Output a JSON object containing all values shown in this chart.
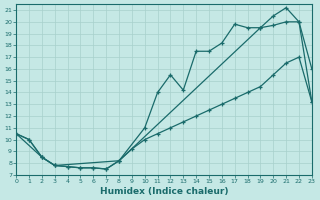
{
  "xlabel": "Humidex (Indice chaleur)",
  "background_color": "#c5e8e5",
  "grid_color": "#a8d0cc",
  "line_color": "#1a6b6b",
  "xlim": [
    0,
    23
  ],
  "ylim": [
    7,
    21.5
  ],
  "yticks": [
    7,
    8,
    9,
    10,
    11,
    12,
    13,
    14,
    15,
    16,
    17,
    18,
    19,
    20,
    21
  ],
  "xticks": [
    0,
    1,
    2,
    3,
    4,
    5,
    6,
    7,
    8,
    9,
    10,
    11,
    12,
    13,
    14,
    15,
    16,
    17,
    18,
    19,
    20,
    21,
    22,
    23
  ],
  "line1_x": [
    0,
    1,
    2,
    3,
    4,
    5,
    6,
    7,
    8,
    10,
    11,
    12,
    13,
    14,
    15,
    16,
    17,
    18,
    19,
    20,
    21,
    22,
    23
  ],
  "line1_y": [
    10.5,
    10.0,
    8.5,
    7.8,
    7.7,
    7.6,
    7.6,
    7.5,
    8.2,
    11.0,
    14.0,
    15.5,
    14.2,
    17.5,
    17.5,
    18.2,
    19.8,
    19.5,
    19.5,
    19.7,
    20.0,
    20.0,
    16.0
  ],
  "line2_x": [
    0,
    1,
    2,
    3,
    4,
    5,
    6,
    7,
    8,
    19,
    20,
    21,
    22,
    23
  ],
  "line2_y": [
    10.5,
    10.0,
    8.5,
    7.8,
    7.7,
    7.6,
    7.6,
    7.5,
    8.2,
    19.5,
    20.5,
    21.2,
    20.0,
    13.2
  ],
  "line3_x": [
    0,
    2,
    3,
    8,
    9,
    10,
    11,
    12,
    13,
    14,
    15,
    16,
    17,
    18,
    19,
    20,
    21,
    22,
    23
  ],
  "line3_y": [
    10.5,
    8.5,
    7.8,
    8.2,
    9.2,
    10.0,
    10.5,
    11.0,
    11.5,
    12.0,
    12.5,
    13.0,
    13.5,
    14.0,
    14.5,
    15.5,
    16.5,
    17.0,
    13.2
  ]
}
